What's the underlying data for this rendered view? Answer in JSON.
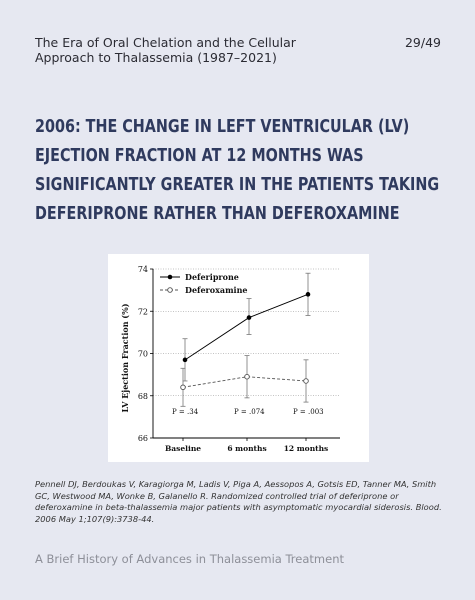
{
  "header": {
    "title": "The Era of Oral Chelation and the Cellular\nApproach to Thalassemia  (1987–2021)",
    "page": "29/49"
  },
  "heading": "2006: The change in left ventricular (LV) ejection fraction at 12 months was significantly greater in the patients taking deferiprone rather than deferoxamine",
  "citation": "Pennell DJ, Berdoukas V, Karagiorga M, Ladis V, Piga A, Aessopos A, Gotsis ED, Tanner MA, Smith GC, Westwood MA, Wonke B, Galanello R.  Randomized controlled trial of deferiprone or deferoxamine in beta-thalassemia major patients with asymptomatic myocardial siderosis.  Blood. 2006 May 1;107(9):3738-44.",
  "footer": "A Brief History of Advances in Thalassemia Treatment",
  "chart_data": {
    "type": "line",
    "categories": [
      "Baseline",
      "6 months",
      "12 months"
    ],
    "ylabel": "LV Ejection Fraction (%)",
    "xlabel": "",
    "ylim": [
      66,
      74
    ],
    "yticks": [
      66,
      68,
      70,
      72,
      74
    ],
    "grid": true,
    "legend_position": "top-left",
    "series": [
      {
        "name": "Deferiprone",
        "values": [
          69.7,
          71.7,
          72.8
        ],
        "err_low": [
          68.7,
          70.9,
          71.8
        ],
        "err_high": [
          70.7,
          72.6,
          73.8
        ],
        "marker": "filled-circle",
        "line": "solid",
        "color": "#000000"
      },
      {
        "name": "Deferoxamine",
        "values": [
          68.4,
          68.9,
          68.7
        ],
        "err_low": [
          67.5,
          67.9,
          67.7
        ],
        "err_high": [
          69.3,
          69.9,
          69.7
        ],
        "marker": "open-circle",
        "line": "dashed",
        "color": "#555555"
      }
    ],
    "annotations": [
      "P = .34",
      "P = .074",
      "P = .003"
    ]
  }
}
